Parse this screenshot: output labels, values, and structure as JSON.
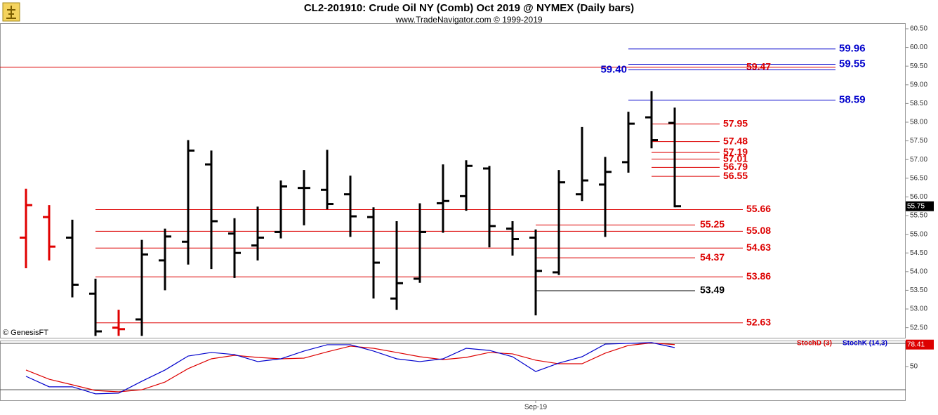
{
  "chart_data": [
    {
      "type": "ohlc",
      "title": "CL2-201910:  Crude Oil NY (Comb) Oct 2019 @ NYMEX  (Daily bars)",
      "subtitle": "www.TradeNavigator.com © 1999-2019",
      "watermark": "© GenesisFT",
      "xticks": [
        {
          "value": 22,
          "label": "Sep-19"
        }
      ],
      "open": [
        54.91,
        55.46,
        54.91,
        53.41,
        52.5,
        52.72,
        54.3,
        54.8,
        56.87,
        55.02,
        54.7,
        55.06,
        56.24,
        56.19,
        56.07,
        55.46,
        53.28,
        53.81,
        55.83,
        56.02,
        56.76,
        55.15,
        54.91,
        53.98,
        56.07,
        56.33,
        56.93,
        58.13,
        57.98
      ],
      "high": [
        56.22,
        55.78,
        55.39,
        53.81,
        52.98,
        54.85,
        55.15,
        57.52,
        57.24,
        55.43,
        55.74,
        56.44,
        56.72,
        57.26,
        56.57,
        55.72,
        55.35,
        55.83,
        56.87,
        56.98,
        56.83,
        55.35,
        55.13,
        56.72,
        57.87,
        57.07,
        58.28,
        58.83,
        58.39
      ],
      "low": [
        54.09,
        54.3,
        53.31,
        52.28,
        52.28,
        52.28,
        53.5,
        54.19,
        54.07,
        53.83,
        54.3,
        54.89,
        55.24,
        55.67,
        54.93,
        53.28,
        52.98,
        53.7,
        55.04,
        55.63,
        54.65,
        54.43,
        52.83,
        53.91,
        55.89,
        54.93,
        56.65,
        57.3,
        55.72
      ],
      "close": [
        55.78,
        54.67,
        53.65,
        52.4,
        52.46,
        54.46,
        54.94,
        57.24,
        55.35,
        54.5,
        54.91,
        56.28,
        56.24,
        55.81,
        55.48,
        54.24,
        53.69,
        55.06,
        55.89,
        56.83,
        55.22,
        54.87,
        54.02,
        56.39,
        56.44,
        56.67,
        57.96,
        57.52,
        55.75
      ],
      "bar_colors": [
        "#e00000",
        "#e00000",
        "#000000",
        "#000000",
        "#e00000",
        "#000000",
        "#000000",
        "#000000",
        "#000000",
        "#000000",
        "#000000",
        "#000000",
        "#000000",
        "#000000",
        "#000000",
        "#000000",
        "#000000",
        "#000000",
        "#000000",
        "#000000",
        "#000000",
        "#000000",
        "#000000",
        "#000000",
        "#000000",
        "#000000",
        "#000000",
        "#000000",
        "#000000"
      ],
      "levels": [
        {
          "value": 59.96,
          "label": "59.96",
          "color": "#0000cc"
        },
        {
          "value": 59.55,
          "label": "59.55",
          "color": "#0000cc"
        },
        {
          "value": 59.4,
          "label": "59.40",
          "color": "#0000cc"
        },
        {
          "value": 59.47,
          "label": "59.47",
          "color": "#dd0000"
        },
        {
          "value": 58.59,
          "label": "58.59",
          "color": "#0000cc"
        },
        {
          "value": 57.95,
          "label": "57.95",
          "color": "#dd0000"
        },
        {
          "value": 57.48,
          "label": "57.48",
          "color": "#dd0000"
        },
        {
          "value": 57.19,
          "label": "57.19",
          "color": "#dd0000"
        },
        {
          "value": 57.01,
          "label": "57.01",
          "color": "#dd0000"
        },
        {
          "value": 56.79,
          "label": "56.79",
          "color": "#dd0000"
        },
        {
          "value": 56.55,
          "label": "56.55",
          "color": "#dd0000"
        },
        {
          "value": 55.66,
          "label": "55.66",
          "color": "#dd0000"
        },
        {
          "value": 55.25,
          "label": "55.25",
          "color": "#dd0000"
        },
        {
          "value": 55.08,
          "label": "55.08",
          "color": "#dd0000"
        },
        {
          "value": 54.63,
          "label": "54.63",
          "color": "#dd0000"
        },
        {
          "value": 54.37,
          "label": "54.37",
          "color": "#dd0000"
        },
        {
          "value": 53.86,
          "label": "53.86",
          "color": "#dd0000"
        },
        {
          "value": 53.49,
          "label": "53.49",
          "color": "#000000"
        },
        {
          "value": 52.63,
          "label": "52.63",
          "color": "#dd0000"
        }
      ],
      "ylim": [
        52.23,
        60.65
      ],
      "yticks": [
        {
          "value": 52.5,
          "label": "52.50"
        },
        {
          "value": 53,
          "label": "53.00"
        },
        {
          "value": 53.5,
          "label": "53.50"
        },
        {
          "value": 54,
          "label": "54.00"
        },
        {
          "value": 54.5,
          "label": "54.50"
        },
        {
          "value": 55,
          "label": "55.00"
        },
        {
          "value": 55.5,
          "label": "55.50"
        },
        {
          "value": 56,
          "label": "56.00"
        },
        {
          "value": 56.5,
          "label": "56.50"
        },
        {
          "value": 57,
          "label": "57.00"
        },
        {
          "value": 57.5,
          "label": "57.50"
        },
        {
          "value": 58,
          "label": "58.00"
        },
        {
          "value": 58.5,
          "label": "58.50"
        },
        {
          "value": 59,
          "label": "59.00"
        },
        {
          "value": 59.5,
          "label": "59.50"
        },
        {
          "value": 60,
          "label": "60.00"
        },
        {
          "value": 60.5,
          "label": "60.50"
        }
      ]
    },
    {
      "type": "line",
      "series": [
        {
          "name": "StochD (3)",
          "color": "#dd0000",
          "values": [
            45.5,
            33.6,
            26.4,
            19,
            17.3,
            20,
            30,
            47.3,
            60,
            64.5,
            61.8,
            60,
            60.9,
            69,
            76.4,
            73.6,
            68.2,
            62.7,
            59,
            61.8,
            68.2,
            66.4,
            58.2,
            53.6,
            53.6,
            67.3,
            77.3,
            80.5,
            78.41
          ]
        },
        {
          "name": "StochK (14,3)",
          "color": "#0000cc",
          "values": [
            37.4,
            23.8,
            23.8,
            14.7,
            15.6,
            31,
            45.5,
            63.6,
            68.2,
            65.5,
            56.4,
            60,
            70,
            78.2,
            78.2,
            70,
            60,
            56.4,
            60,
            73.6,
            70.9,
            62.7,
            43.6,
            54.5,
            62.7,
            79,
            80,
            81,
            74.5
          ]
        }
      ],
      "ylim": [
        6.4,
        83.6
      ],
      "yticks": [
        50
      ],
      "ref_lines": [
        20,
        80
      ]
    }
  ]
}
